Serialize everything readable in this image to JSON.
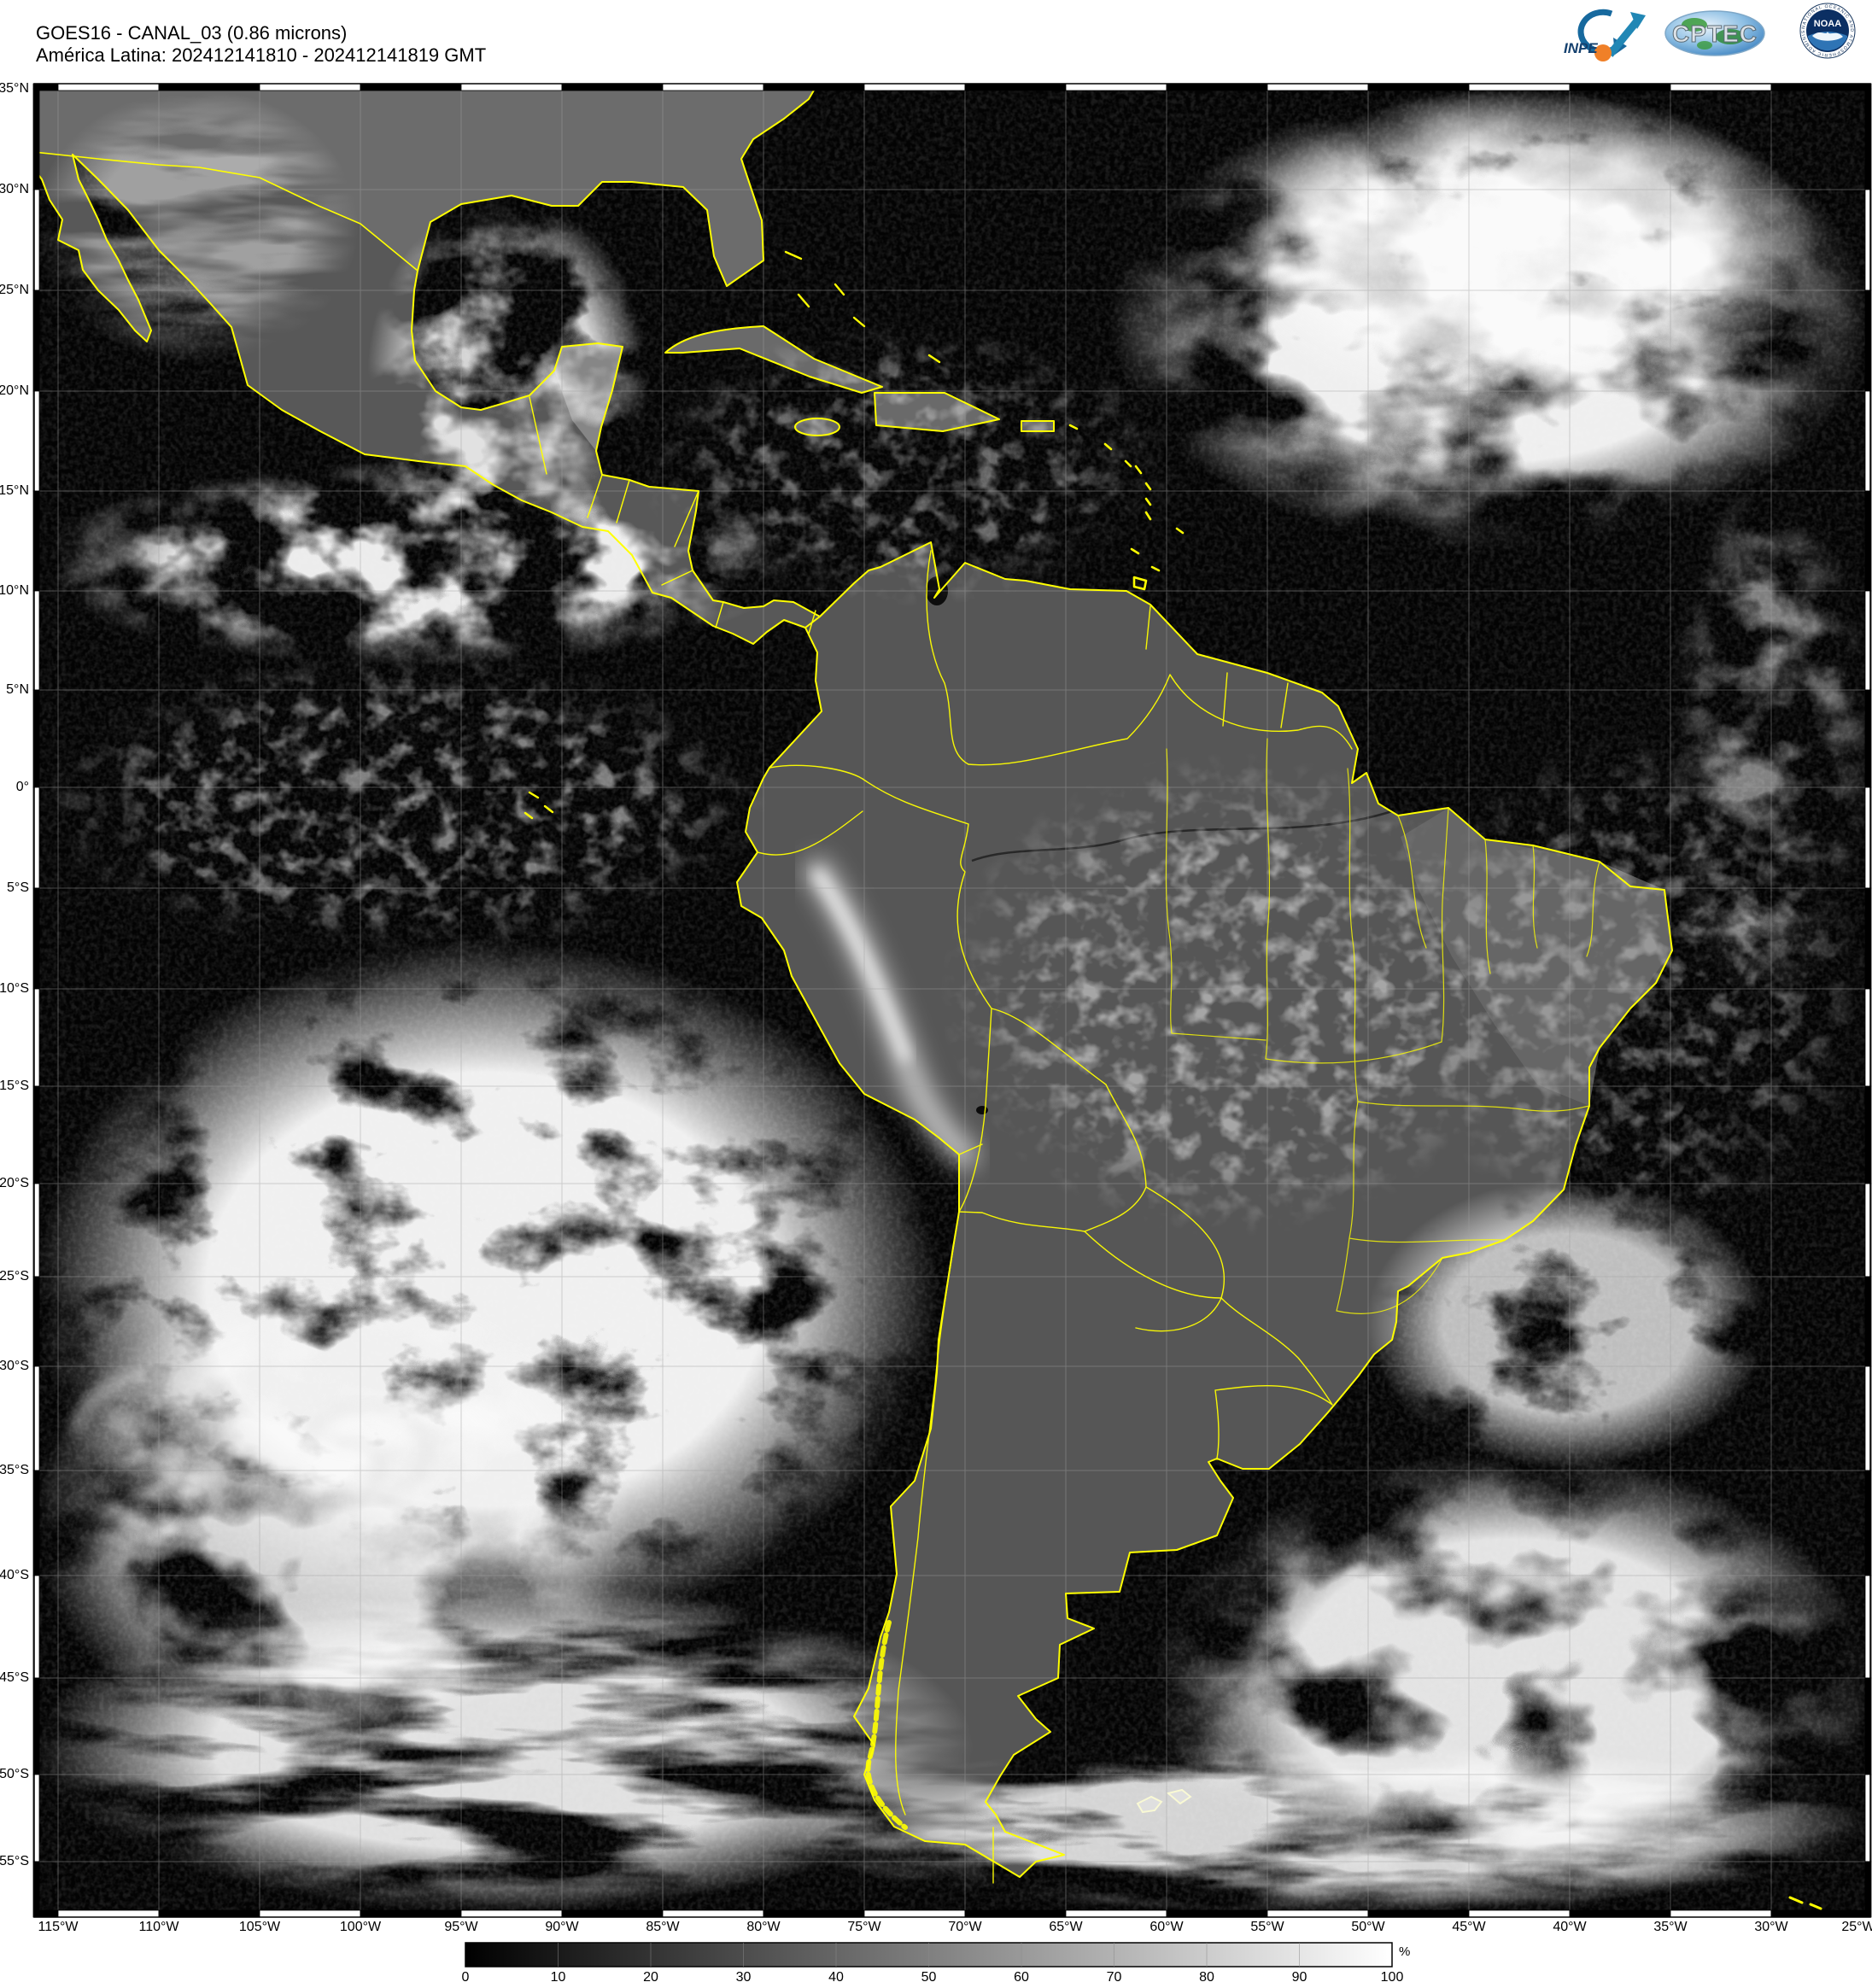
{
  "header": {
    "title_line1": "GOES16 - CANAL_03 (0.86 microns)",
    "title_line2": "América Latina: 202412141810 - 202412141819 GMT"
  },
  "logos": {
    "inpe_label": "INPE",
    "cptec_label": "CPTEC",
    "noaa_label": "NOAA",
    "noaa_ring_text": "NATIONAL OCEANIC AND ATMOSPHERIC ADMINISTRATION"
  },
  "map": {
    "satellite": "GOES16",
    "channel": "CANAL_03",
    "wavelength": "0.86 microns",
    "region": "América Latina",
    "time_start_gmt": "202412141810",
    "time_end_gmt": "202412141819",
    "border_color": "#ffff00",
    "grid_interval": "5°",
    "lat_labels": [
      "35°N",
      "30°N",
      "25°N",
      "20°N",
      "15°N",
      "10°N",
      "5°N",
      "0°",
      "5°S",
      "10°S",
      "15°S",
      "20°S",
      "25°S",
      "30°S",
      "35°S",
      "40°S",
      "45°S",
      "50°S",
      "55°S"
    ],
    "lon_labels": [
      "115°W",
      "110°W",
      "105°W",
      "100°W",
      "95°W",
      "90°W",
      "85°W",
      "80°W",
      "75°W",
      "70°W",
      "65°W",
      "60°W",
      "55°W",
      "50°W",
      "45°W",
      "40°W",
      "35°W",
      "30°W",
      "25°W"
    ]
  },
  "colorbar": {
    "unit": "%",
    "min": 0,
    "max": 100,
    "ticks": [
      "0",
      "10",
      "20",
      "30",
      "40",
      "50",
      "60",
      "70",
      "80",
      "90",
      "100"
    ],
    "colors": [
      "#000000",
      "#ffffff"
    ]
  }
}
